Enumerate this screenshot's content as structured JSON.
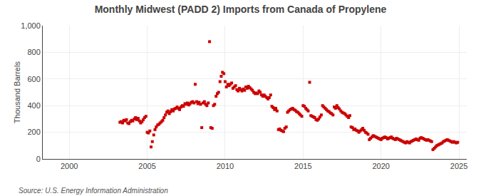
{
  "chart_data": {
    "type": "scatter",
    "title": "Monthly Midwest (PADD 2) Imports from Canada of Propylene",
    "ylabel": "Thousand Barrels",
    "annotations": [
      "Source: U.S. Energy Information Administration"
    ],
    "color": "#cc0000",
    "marker": "square",
    "grid": true,
    "xlim": [
      1998.3,
      2025.5
    ],
    "xticks": [
      2000,
      2005,
      2010,
      2015,
      2020,
      2025
    ],
    "ylim": [
      0,
      1000
    ],
    "yticks": [
      0,
      200,
      400,
      600,
      800,
      {
        "value": 1000,
        "label": "1,000"
      }
    ],
    "x": [
      2003.25,
      2003.33,
      2003.42,
      2003.5,
      2003.58,
      2003.67,
      2003.75,
      2003.83,
      2003.92,
      2004.0,
      2004.08,
      2004.17,
      2004.25,
      2004.33,
      2004.42,
      2004.5,
      2004.58,
      2004.67,
      2004.75,
      2004.83,
      2004.92,
      2005.0,
      2005.08,
      2005.17,
      2005.25,
      2005.33,
      2005.42,
      2005.5,
      2005.58,
      2005.67,
      2005.75,
      2005.83,
      2005.92,
      2006.0,
      2006.08,
      2006.17,
      2006.25,
      2006.33,
      2006.42,
      2006.5,
      2006.58,
      2006.67,
      2006.75,
      2006.83,
      2006.92,
      2007.0,
      2007.08,
      2007.17,
      2007.25,
      2007.33,
      2007.42,
      2007.5,
      2007.58,
      2007.67,
      2007.75,
      2007.83,
      2007.92,
      2008.0,
      2008.08,
      2008.17,
      2008.25,
      2008.33,
      2008.42,
      2008.5,
      2008.58,
      2008.67,
      2008.75,
      2008.83,
      2008.92,
      2009.0,
      2009.08,
      2009.17,
      2009.25,
      2009.33,
      2009.42,
      2009.5,
      2009.58,
      2009.67,
      2009.75,
      2009.83,
      2009.92,
      2010.0,
      2010.08,
      2010.17,
      2010.25,
      2010.33,
      2010.42,
      2010.5,
      2010.58,
      2010.67,
      2010.75,
      2010.83,
      2010.92,
      2011.0,
      2011.08,
      2011.17,
      2011.25,
      2011.33,
      2011.42,
      2011.5,
      2011.58,
      2011.67,
      2011.75,
      2011.83,
      2011.92,
      2012.0,
      2012.08,
      2012.17,
      2012.25,
      2012.33,
      2012.42,
      2012.5,
      2012.58,
      2012.67,
      2012.75,
      2012.83,
      2012.92,
      2013.0,
      2013.08,
      2013.17,
      2013.25,
      2013.33,
      2013.42,
      2013.5,
      2013.58,
      2013.67,
      2013.75,
      2013.83,
      2013.92,
      2014.0,
      2014.08,
      2014.17,
      2014.25,
      2014.33,
      2014.42,
      2014.5,
      2014.58,
      2014.67,
      2014.75,
      2014.83,
      2014.92,
      2015.0,
      2015.08,
      2015.17,
      2015.25,
      2015.33,
      2015.42,
      2015.5,
      2015.58,
      2015.67,
      2015.75,
      2015.83,
      2015.92,
      2016.0,
      2016.08,
      2016.17,
      2016.25,
      2016.33,
      2016.42,
      2016.5,
      2016.58,
      2016.67,
      2016.75,
      2016.83,
      2016.92,
      2017.0,
      2017.08,
      2017.17,
      2017.25,
      2017.33,
      2017.42,
      2017.5,
      2017.58,
      2017.67,
      2017.75,
      2017.83,
      2017.92,
      2018.0,
      2018.08,
      2018.17,
      2018.25,
      2018.33,
      2018.42,
      2018.5,
      2018.58,
      2018.67,
      2018.75,
      2018.83,
      2018.92,
      2019.0,
      2019.08,
      2019.17,
      2019.25,
      2019.33,
      2019.42,
      2019.5,
      2019.58,
      2019.67,
      2019.75,
      2019.83,
      2019.92,
      2020.0,
      2020.08,
      2020.17,
      2020.25,
      2020.33,
      2020.42,
      2020.5,
      2020.58,
      2020.67,
      2020.75,
      2020.83,
      2020.92,
      2021.0,
      2021.08,
      2021.17,
      2021.25,
      2021.33,
      2021.42,
      2021.5,
      2021.58,
      2021.67,
      2021.75,
      2021.83,
      2021.92,
      2022.0,
      2022.08,
      2022.17,
      2022.25,
      2022.33,
      2022.42,
      2022.5,
      2022.58,
      2022.67,
      2022.75,
      2022.83,
      2022.92,
      2023.0,
      2023.08,
      2023.17,
      2023.25,
      2023.33,
      2023.42,
      2023.5,
      2023.58,
      2023.67,
      2023.75,
      2023.83,
      2023.92,
      2024.0,
      2024.08,
      2024.17,
      2024.25,
      2024.33,
      2024.42,
      2024.5,
      2024.58,
      2024.67,
      2024.75,
      2024.83,
      2024.92
    ],
    "values": [
      275,
      280,
      270,
      290,
      285,
      295,
      270,
      265,
      280,
      290,
      285,
      300,
      310,
      295,
      305,
      285,
      270,
      280,
      295,
      310,
      320,
      200,
      195,
      210,
      90,
      130,
      180,
      220,
      240,
      255,
      260,
      270,
      280,
      290,
      310,
      330,
      350,
      360,
      340,
      355,
      370,
      360,
      375,
      380,
      390,
      380,
      370,
      390,
      400,
      395,
      415,
      410,
      420,
      405,
      415,
      425,
      430,
      420,
      560,
      430,
      415,
      425,
      410,
      235,
      420,
      430,
      410,
      400,
      420,
      880,
      235,
      230,
      400,
      410,
      470,
      490,
      500,
      580,
      620,
      650,
      640,
      580,
      540,
      560,
      550,
      560,
      570,
      530,
      540,
      550,
      520,
      510,
      530,
      520,
      510,
      525,
      515,
      540,
      530,
      545,
      535,
      525,
      515,
      500,
      490,
      495,
      490,
      510,
      500,
      480,
      470,
      480,
      470,
      460,
      450,
      460,
      480,
      395,
      385,
      370,
      380,
      360,
      220,
      225,
      215,
      210,
      205,
      230,
      240,
      350,
      360,
      370,
      375,
      380,
      370,
      365,
      355,
      350,
      340,
      330,
      320,
      400,
      395,
      380,
      370,
      360,
      575,
      325,
      320,
      315,
      310,
      295,
      290,
      300,
      315,
      330,
      400,
      390,
      380,
      370,
      360,
      355,
      345,
      340,
      330,
      390,
      380,
      400,
      385,
      375,
      360,
      350,
      345,
      340,
      330,
      320,
      310,
      325,
      240,
      235,
      220,
      225,
      215,
      210,
      200,
      210,
      220,
      230,
      215,
      200,
      195,
      185,
      145,
      155,
      165,
      175,
      170,
      165,
      160,
      155,
      150,
      145,
      155,
      160,
      165,
      160,
      150,
      155,
      160,
      165,
      155,
      150,
      145,
      155,
      150,
      145,
      140,
      135,
      130,
      125,
      120,
      130,
      125,
      120,
      130,
      135,
      140,
      145,
      150,
      145,
      140,
      155,
      160,
      155,
      150,
      145,
      140,
      145,
      140,
      135,
      130,
      70,
      80,
      90,
      100,
      105,
      110,
      115,
      120,
      130,
      135,
      140,
      145,
      140,
      135,
      130,
      125,
      130,
      125,
      120,
      125
    ]
  }
}
